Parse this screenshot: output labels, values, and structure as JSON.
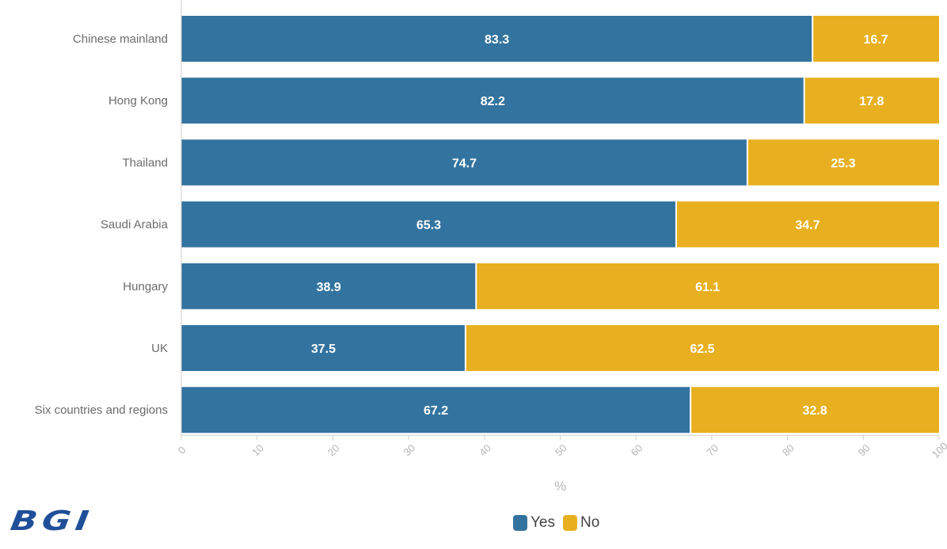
{
  "chart_data": {
    "type": "bar",
    "orientation": "horizontal",
    "stacked": true,
    "categories": [
      "Chinese mainland",
      "Hong Kong",
      "Thailand",
      "Saudi Arabia",
      "Hungary",
      "UK",
      "Six countries and regions"
    ],
    "series": [
      {
        "name": "Yes",
        "color": "#33739f",
        "values": [
          83.3,
          82.2,
          74.7,
          65.3,
          38.9,
          37.5,
          67.2
        ]
      },
      {
        "name": "No",
        "color": "#e8b020",
        "values": [
          16.7,
          17.8,
          25.3,
          34.7,
          61.1,
          62.5,
          32.8
        ]
      }
    ],
    "xlabel": "%",
    "xlim": [
      0,
      100
    ],
    "xticks": [
      "0",
      "10",
      "20",
      "30",
      "40",
      "50",
      "60",
      "70",
      "80",
      "90",
      "100"
    ],
    "legend_position": "bottom",
    "grid": false
  },
  "brand": {
    "logo_text": "BGI",
    "color": "#1f4f98"
  }
}
